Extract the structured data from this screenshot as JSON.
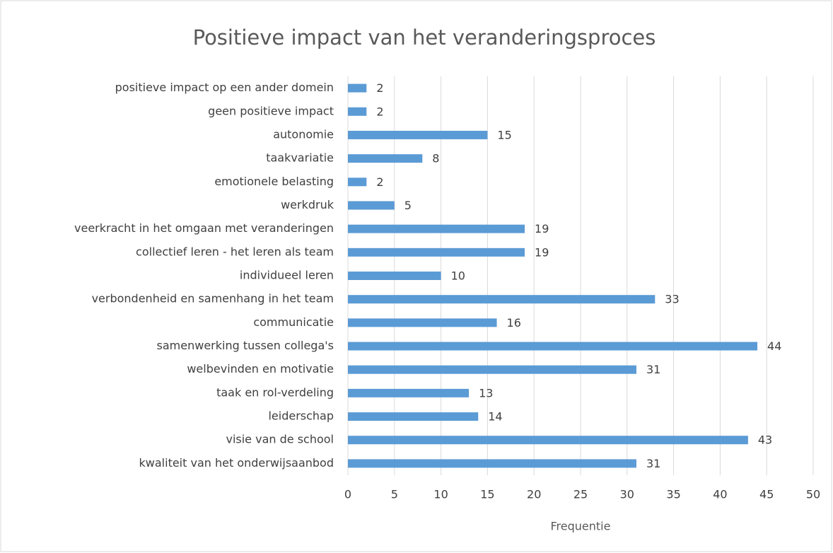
{
  "chart_data": {
    "type": "bar",
    "orientation": "horizontal",
    "title": "Positieve impact van het veranderingsproces",
    "x_label": "Frequentie",
    "categories": [
      "positieve impact op een ander domein",
      "geen positieve impact",
      "autonomie",
      "taakvariatie",
      "emotionele belasting",
      "werkdruk",
      "veerkracht in het omgaan met veranderingen",
      "collectief leren - het leren als team",
      "individueel leren",
      "verbondenheid en samenhang in het team",
      "communicatie",
      "samenwerking tussen collega's",
      "welbevinden en motivatie",
      "taak en rol-verdeling",
      "leiderschap",
      "visie van de school",
      "kwaliteit van het onderwijsaanbod"
    ],
    "values": [
      2,
      2,
      15,
      8,
      2,
      5,
      19,
      19,
      10,
      33,
      16,
      44,
      31,
      13,
      14,
      43,
      31
    ],
    "color": "#5b9bd5",
    "xlim": [
      0,
      50
    ],
    "xticks": [
      0,
      5,
      10,
      15,
      20,
      25,
      30,
      35,
      40,
      45,
      50
    ],
    "grid": true
  }
}
